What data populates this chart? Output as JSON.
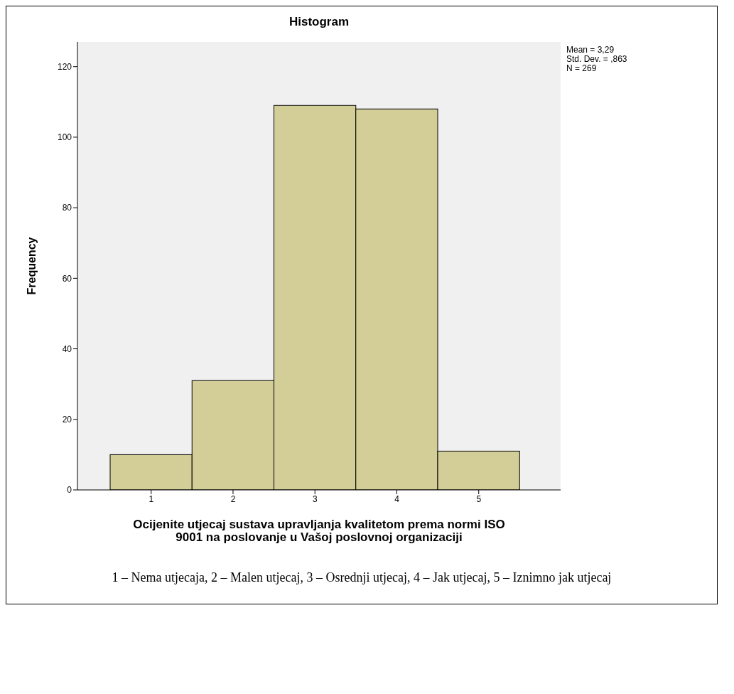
{
  "chart_data": {
    "type": "histogram",
    "title": "Histogram",
    "xlabel": "Ocijenite utjecaj sustava upravljanja kvalitetom prema normi ISO 9001 na poslovanje u Vašoj poslovnoj organizaciji",
    "ylabel": "Frequency",
    "bins": [
      0.5,
      1.5,
      2.5,
      3.5,
      4.5,
      5.5
    ],
    "values": [
      10,
      31,
      109,
      108,
      11
    ],
    "color": "#d3ce97",
    "xlim": [
      0.1,
      6.0
    ],
    "xticks": [
      1,
      2,
      3,
      4,
      5
    ],
    "ylim": [
      0,
      127
    ],
    "yticks": [
      0,
      20,
      40,
      60,
      80,
      100,
      120
    ],
    "grid": false,
    "annotations": [
      "Mean = 3,29",
      "Std. Dev. = ,863",
      "N = 269",
      "1 – Nema utjecaja, 2 – Malen utjecaj, 3 – Osrednji utjecaj, 4 – Jak utjecaj, 5 – Iznimno jak utjecaj"
    ]
  }
}
